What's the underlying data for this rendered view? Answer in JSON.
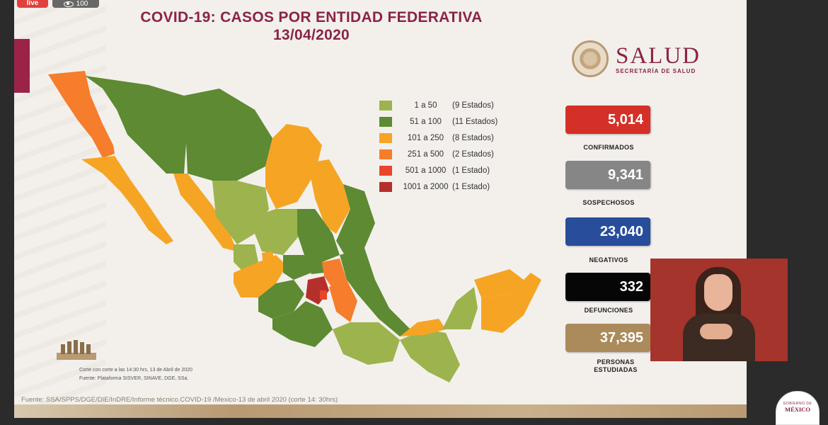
{
  "stream": {
    "live_label": "live",
    "viewer_count": "100"
  },
  "title": {
    "line1": "COVID-19: CASOS POR ENTIDAD FEDERATIVA",
    "line2": "13/04/2020"
  },
  "logo": {
    "main": "SALUD",
    "sub": "SECRETARÍA DE SALUD"
  },
  "legend": [
    {
      "range": "1 a 50",
      "count": "(9 Estados)",
      "color": "#9db34e"
    },
    {
      "range": "51 a 100",
      "count": "(11 Estados)",
      "color": "#5d8a32"
    },
    {
      "range": "101 a 250",
      "count": "(8 Estados)",
      "color": "#f6a424"
    },
    {
      "range": "251 a 500",
      "count": "(2 Estados)",
      "color": "#f57d2c"
    },
    {
      "range": "501 a 1000",
      "count": "(1 Estado)",
      "color": "#e8452a"
    },
    {
      "range": "1001 a 2000",
      "count": "(1 Estado)",
      "color": "#b5302a"
    }
  ],
  "stats": {
    "confirmados": {
      "value": "5,014",
      "label": "CONFIRMADOS",
      "color": "#d53027"
    },
    "sospechosos": {
      "value": "9,341",
      "label": "SOSPECHOSOS",
      "color": "#868686"
    },
    "negativos": {
      "value": "23,040",
      "label": "NEGATIVOS",
      "color": "#274d9b"
    },
    "defunciones": {
      "value": "332",
      "label": "DEFUNCIONES",
      "color": "#060606"
    },
    "estudiadas": {
      "value": "37,395",
      "label_line1": "PERSONAS",
      "label_line2": "ESTUDIADAS",
      "color": "#ab8a5b"
    }
  },
  "footer": {
    "note1": "Corte con corte a las 14:30 hrs, 13 de Abril de 2020",
    "note2": "Fuente: Plataforma SISVER, SINAVE, DGE, SSa.",
    "source": "Fuente: SSA/SPPS/DGE/DIE/InDRE/Informe técnico.COVID-19 /Mexico-13 de abril 2020 (corte 14: 30hrs)",
    "gov_top": "GOBIERNO DE",
    "gov_main": "MÉXICO"
  }
}
